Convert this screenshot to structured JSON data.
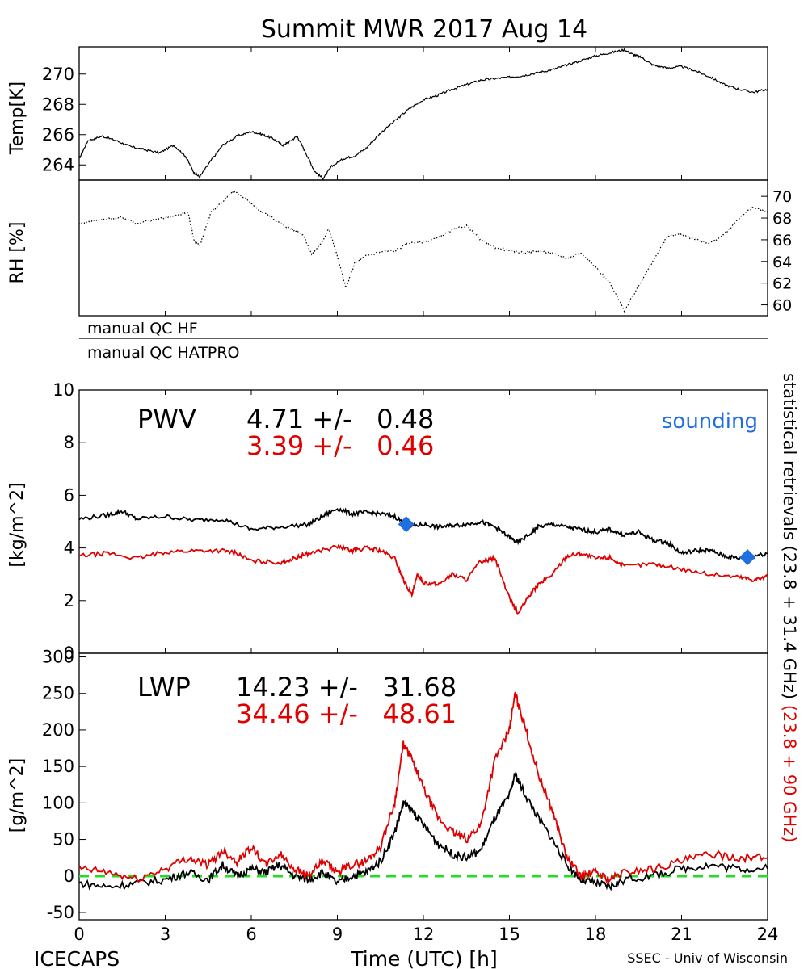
{
  "title": "Summit MWR 2017 Aug 14",
  "footer": {
    "left": "ICECAPS",
    "center": "Time (UTC) [h]",
    "right": "SSEC - Univ of Wisconsin"
  },
  "qc": {
    "hf": "manual QC HF",
    "hatpro": "manual QC HATPRO"
  },
  "side_label": {
    "black": "statistical retrievals (23.8 + 31.4 GHz)",
    "red": "(23.8 + 90 GHz)"
  },
  "colors": {
    "black_series": "#000000",
    "red_series": "#e00000",
    "sounding": "#1f6fe0",
    "zero_line": "#22dd22"
  },
  "chart_data": [
    {
      "type": "line",
      "ylabel": "Temp[K]",
      "ylim": [
        263,
        271.8
      ],
      "yticks": [
        264,
        266,
        268,
        270
      ],
      "xlim": [
        0,
        24
      ],
      "series": [
        {
          "x": [
            0,
            0.3,
            0.8,
            1.3,
            1.8,
            2.3,
            2.8,
            3.3,
            3.7,
            4.0,
            4.2,
            4.6,
            5.0,
            5.5,
            6.0,
            6.4,
            6.8,
            7.1,
            7.3,
            7.6,
            7.9,
            8.2,
            8.5,
            8.8,
            9.2,
            9.6,
            10.0,
            10.5,
            11.0,
            11.5,
            12.0,
            12.5,
            13.0,
            13.5,
            14.0,
            14.5,
            15.0,
            15.5,
            16.0,
            16.5,
            17.0,
            17.5,
            18.0,
            18.5,
            19.0,
            19.3,
            19.6,
            20.0,
            20.5,
            21.0,
            21.5,
            22.0,
            22.5,
            23.0,
            23.5,
            24.0
          ],
          "y": [
            264.4,
            265.6,
            265.9,
            265.6,
            265.2,
            265.0,
            264.8,
            265.3,
            264.6,
            263.5,
            263.2,
            264.3,
            265.3,
            265.9,
            266.2,
            266.0,
            265.7,
            265.3,
            265.5,
            265.9,
            264.8,
            263.6,
            263.1,
            263.9,
            264.4,
            264.6,
            265.1,
            266.1,
            266.9,
            267.7,
            268.3,
            268.6,
            269.0,
            269.3,
            269.6,
            269.7,
            269.8,
            269.9,
            270.1,
            270.3,
            270.6,
            270.9,
            271.2,
            271.4,
            271.6,
            271.3,
            271.1,
            270.6,
            270.4,
            270.5,
            270.2,
            269.8,
            269.3,
            269.0,
            268.8,
            269.0
          ]
        }
      ]
    },
    {
      "type": "scatter",
      "ylabel": "RH [%]",
      "ylim": [
        59,
        71.5
      ],
      "yticks": [
        60,
        62,
        64,
        66,
        68,
        70
      ],
      "xlim": [
        0,
        24
      ],
      "series": [
        {
          "x": [
            0,
            0.5,
            1.0,
            1.5,
            2.0,
            2.5,
            3.0,
            3.5,
            3.8,
            4.0,
            4.2,
            4.6,
            5.0,
            5.4,
            5.8,
            6.2,
            6.6,
            7.0,
            7.4,
            7.8,
            8.1,
            8.4,
            8.7,
            9.0,
            9.3,
            9.6,
            10.0,
            10.5,
            11.0,
            11.5,
            12.0,
            12.5,
            13.0,
            13.5,
            14.0,
            14.5,
            15.0,
            15.5,
            16.0,
            16.5,
            17.0,
            17.5,
            18.0,
            18.5,
            19.0,
            19.3,
            19.6,
            20.0,
            20.5,
            21.0,
            21.5,
            22.0,
            22.5,
            23.0,
            23.5,
            24.0
          ],
          "y": [
            67.5,
            67.8,
            67.9,
            68.1,
            67.5,
            67.8,
            68.0,
            68.3,
            68.5,
            66.0,
            65.4,
            68.6,
            69.5,
            70.5,
            69.8,
            68.8,
            68.3,
            67.5,
            67.0,
            66.5,
            64.7,
            65.5,
            67.0,
            64.5,
            61.5,
            63.8,
            64.5,
            64.9,
            65.0,
            65.7,
            65.8,
            66.2,
            66.9,
            67.3,
            66.0,
            65.3,
            65.0,
            64.8,
            65.0,
            64.7,
            64.3,
            64.8,
            63.5,
            62.0,
            59.5,
            60.8,
            62.2,
            64.0,
            66.3,
            66.5,
            66.0,
            65.7,
            66.5,
            68.0,
            69.0,
            68.5
          ]
        }
      ]
    },
    {
      "type": "line",
      "ylabel": "[kg/m^2]",
      "ylim": [
        0,
        10
      ],
      "yticks": [
        0,
        2,
        4,
        6,
        8,
        10
      ],
      "xlim": [
        0,
        24
      ],
      "annotation": {
        "label": "PWV",
        "black_value": "4.71 +/-   0.48",
        "red_value": "3.39 +/-   0.46",
        "legend": "sounding"
      },
      "sounding": [
        {
          "x": 11.4,
          "y": 4.9
        },
        {
          "x": 23.3,
          "y": 3.65
        }
      ],
      "series": [
        {
          "color": "black",
          "x": [
            0,
            1,
            1.5,
            2,
            3,
            4,
            5,
            6,
            7,
            8,
            8.5,
            9,
            9.5,
            10,
            10.5,
            11,
            11.5,
            12,
            12.5,
            13,
            13.5,
            14,
            14.5,
            15,
            15.3,
            15.8,
            16,
            16.5,
            17,
            17.5,
            18,
            18.5,
            19,
            19.5,
            20,
            20.5,
            21,
            21.5,
            22,
            22.5,
            23,
            23.5,
            24
          ],
          "y": [
            5.1,
            5.25,
            5.4,
            5.1,
            5.2,
            5.05,
            5.1,
            4.7,
            4.8,
            4.9,
            5.2,
            5.5,
            5.3,
            5.35,
            5.3,
            5.2,
            4.8,
            4.9,
            4.8,
            4.85,
            4.9,
            5.0,
            4.8,
            4.4,
            4.2,
            4.6,
            4.8,
            4.9,
            4.8,
            4.7,
            4.6,
            4.7,
            4.5,
            4.6,
            4.3,
            4.2,
            3.8,
            3.9,
            3.9,
            3.7,
            3.6,
            3.7,
            3.8
          ]
        },
        {
          "color": "red",
          "x": [
            0,
            1,
            2,
            3,
            4,
            5,
            5.5,
            6,
            7,
            7.5,
            8,
            9,
            9.5,
            10,
            10.5,
            11,
            11.3,
            11.6,
            11.8,
            12,
            12.5,
            13,
            13.5,
            14,
            14.5,
            15,
            15.3,
            15.7,
            16,
            16.5,
            17,
            17.5,
            18,
            18.5,
            19,
            20,
            21,
            22,
            23,
            23.5,
            24
          ],
          "y": [
            3.7,
            3.8,
            3.6,
            3.85,
            3.9,
            3.9,
            3.8,
            3.5,
            3.45,
            3.6,
            3.8,
            4.05,
            3.9,
            4.0,
            3.9,
            3.6,
            2.8,
            2.2,
            3.0,
            2.7,
            2.6,
            3.0,
            2.8,
            3.5,
            3.6,
            2.1,
            1.5,
            2.2,
            2.6,
            3.0,
            3.7,
            3.8,
            3.6,
            3.65,
            3.3,
            3.4,
            3.2,
            3.0,
            2.9,
            2.8,
            2.9
          ]
        }
      ]
    },
    {
      "type": "scatter",
      "ylabel": "[g/m^2]",
      "ylim": [
        -60,
        305
      ],
      "yticks": [
        -50,
        0,
        50,
        100,
        150,
        200,
        250,
        300
      ],
      "xticks": [
        0,
        3,
        6,
        9,
        12,
        15,
        18,
        21,
        24
      ],
      "xlim": [
        0,
        24
      ],
      "zero_line": 0,
      "annotation": {
        "label": "LWP",
        "black_value": "14.23 +/-   31.68",
        "red_value": "34.46 +/-   48.61"
      },
      "series": [
        {
          "color": "black",
          "x": [
            0,
            1,
            2,
            3,
            3.8,
            4.5,
            5,
            5.5,
            6,
            6.5,
            7,
            7.5,
            8,
            8.5,
            9,
            9.5,
            10,
            10.5,
            11,
            11.3,
            11.6,
            12,
            12.5,
            13,
            13.5,
            14,
            14.5,
            15,
            15.2,
            15.5,
            16,
            16.5,
            17,
            17.5,
            18,
            18.5,
            19,
            20,
            21,
            22,
            23,
            24
          ],
          "y": [
            -10,
            -15,
            -10,
            -5,
            5,
            -5,
            15,
            0,
            10,
            5,
            15,
            0,
            -5,
            5,
            -10,
            0,
            5,
            20,
            60,
            100,
            90,
            70,
            45,
            30,
            25,
            35,
            80,
            110,
            140,
            115,
            80,
            50,
            15,
            -5,
            -10,
            -15,
            -5,
            0,
            10,
            15,
            10,
            10
          ]
        },
        {
          "color": "red",
          "x": [
            0,
            1,
            2,
            3,
            3.8,
            4.5,
            5,
            5.5,
            6,
            6.5,
            7,
            7.5,
            8,
            8.5,
            9,
            9.5,
            10,
            10.5,
            11,
            11.3,
            11.6,
            12,
            12.5,
            13,
            13.5,
            14,
            14.5,
            15,
            15.2,
            15.5,
            16,
            16.5,
            17,
            17.5,
            18,
            18.5,
            19,
            20,
            21,
            22,
            23,
            24
          ],
          "y": [
            10,
            5,
            -5,
            10,
            25,
            15,
            35,
            20,
            40,
            15,
            30,
            10,
            0,
            20,
            5,
            15,
            20,
            40,
            100,
            180,
            160,
            120,
            80,
            60,
            50,
            70,
            160,
            200,
            250,
            210,
            140,
            90,
            25,
            0,
            5,
            -5,
            5,
            10,
            20,
            30,
            25,
            25
          ]
        }
      ]
    }
  ]
}
